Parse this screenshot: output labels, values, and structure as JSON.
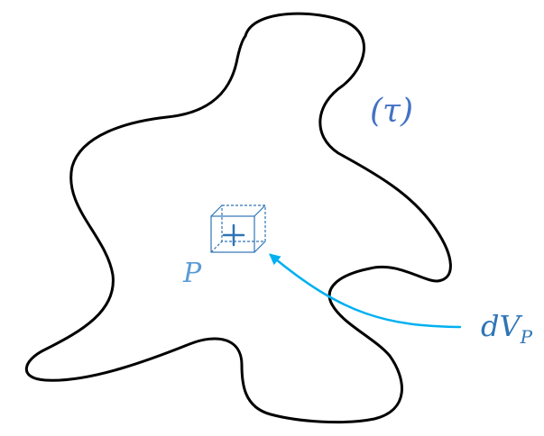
{
  "labels": {
    "region": "(τ)",
    "point": "P",
    "volume_main": "dV",
    "volume_sub": "P"
  },
  "colors": {
    "outline": "#000000",
    "region_label": "#4472C4",
    "point_label": "#5B9BD5",
    "cube": "#2E75B6",
    "arrow": "#00B0F0",
    "volume_label": "#2E75B6"
  }
}
